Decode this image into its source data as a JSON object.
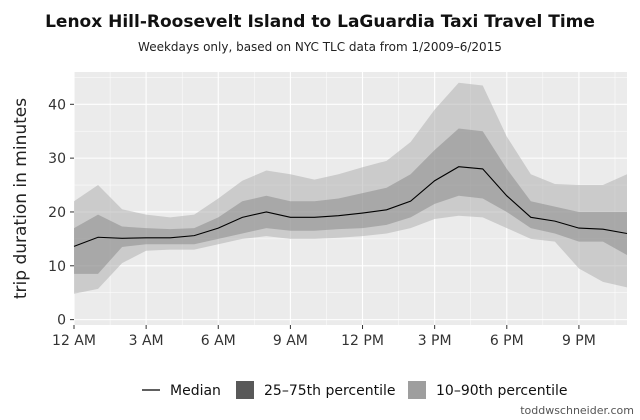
{
  "chart_data": {
    "type": "area",
    "title": "Lenox Hill-Roosevelt Island to LaGuardia Taxi Travel Time",
    "subtitle": "Weekdays only, based on NYC TLC data from 1/2009–6/2015",
    "xlabel": "",
    "ylabel": "trip duration in minutes",
    "xlim": [
      0,
      23
    ],
    "ylim": [
      -1,
      46
    ],
    "x_ticks": [
      0,
      3,
      6,
      9,
      12,
      15,
      18,
      21
    ],
    "x_tick_labels": [
      "12 AM",
      "3 AM",
      "6 AM",
      "9 AM",
      "12 PM",
      "3 PM",
      "6 PM",
      "9 PM"
    ],
    "y_ticks": [
      0,
      10,
      20,
      30,
      40
    ],
    "y_tick_labels": [
      "0",
      "10",
      "20",
      "30",
      "40"
    ],
    "grid": true,
    "hours": [
      0,
      1,
      2,
      3,
      4,
      5,
      6,
      7,
      8,
      9,
      10,
      11,
      12,
      13,
      14,
      15,
      16,
      17,
      18,
      19,
      20,
      21,
      22,
      23
    ],
    "series": [
      {
        "name": "Median",
        "values": [
          13.6,
          15.3,
          15.1,
          15.2,
          15.2,
          15.6,
          17.0,
          19.0,
          20.0,
          19.0,
          19.0,
          19.3,
          19.8,
          20.4,
          22.0,
          25.8,
          28.4,
          28.0,
          23.0,
          19.0,
          18.3,
          17.0,
          16.8,
          16.0
        ]
      },
      {
        "name": "25th percentile",
        "values": [
          8.5,
          8.5,
          13.5,
          14.0,
          14.0,
          14.0,
          15.0,
          16.0,
          17.0,
          16.5,
          16.5,
          16.8,
          17.0,
          17.6,
          19.0,
          21.5,
          23.0,
          22.5,
          20.0,
          17.0,
          16.0,
          14.5,
          14.5,
          12.0
        ]
      },
      {
        "name": "75th percentile",
        "values": [
          17.0,
          19.5,
          17.3,
          17.0,
          16.8,
          17.0,
          19.0,
          22.0,
          23.0,
          22.0,
          22.0,
          22.5,
          23.5,
          24.5,
          27.0,
          31.5,
          35.5,
          35.0,
          28.0,
          22.0,
          21.0,
          20.0,
          20.0,
          20.0
        ]
      },
      {
        "name": "10th percentile",
        "values": [
          4.8,
          5.7,
          10.5,
          12.8,
          13.0,
          13.0,
          14.0,
          15.0,
          15.5,
          15.0,
          15.0,
          15.2,
          15.5,
          16.0,
          17.0,
          18.7,
          19.3,
          19.0,
          17.0,
          15.0,
          14.5,
          9.5,
          7.0,
          6.0
        ]
      },
      {
        "name": "90th percentile",
        "values": [
          22.0,
          25.0,
          20.5,
          19.5,
          19.0,
          19.5,
          22.5,
          25.8,
          27.7,
          27.0,
          26.0,
          27.0,
          28.3,
          29.5,
          33.0,
          39.0,
          44.0,
          43.5,
          34.0,
          27.0,
          25.2,
          25.0,
          25.0,
          27.0
        ]
      }
    ],
    "legend": {
      "position": "bottom",
      "entries": [
        "Median",
        "25–75th percentile",
        "10–90th percentile"
      ]
    },
    "colors": {
      "panel_bg": "#ebebeb",
      "grid": "#ffffff",
      "band_10_90": "#b0b0b0",
      "band_25_75": "#8c8c8c",
      "median": "#000000"
    }
  },
  "credit": "toddwschneider.com"
}
